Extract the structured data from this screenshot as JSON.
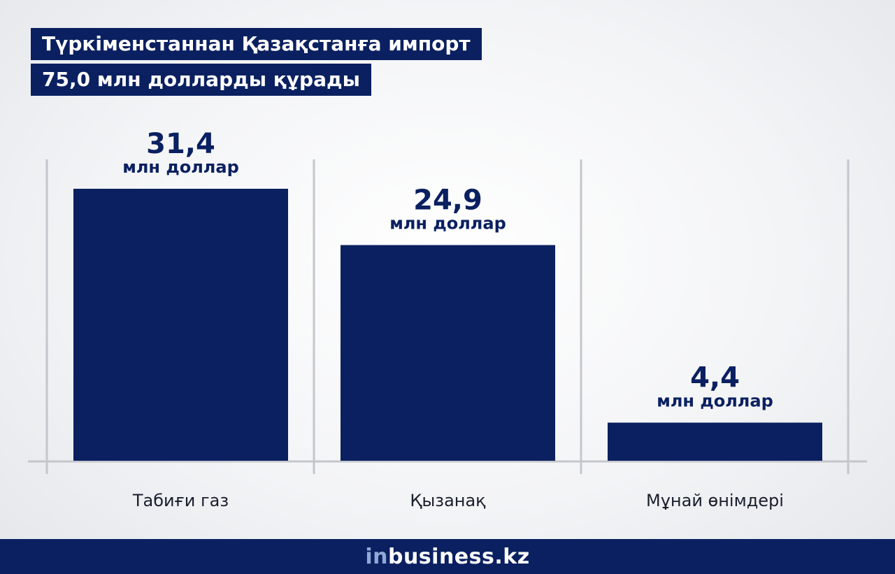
{
  "title": {
    "line1": "Түркіменстаннан Қазақстанға импорт",
    "line2": "75,0 млн долларды құрады"
  },
  "chart_data": {
    "type": "bar",
    "categories": [
      "Табиғи газ",
      "Қызанақ",
      "Мұнай өнімдері"
    ],
    "values": [
      31.4,
      24.9,
      4.4
    ],
    "value_labels": [
      "31,4",
      "24,9",
      "4,4"
    ],
    "unit_label": "млн доллар",
    "ylim": [
      0,
      31.4
    ],
    "grid": true,
    "legend": "none"
  },
  "colors": {
    "bar": "#0a2060",
    "text": "#0a2060",
    "axis": "#c4c6cb"
  },
  "footer": {
    "brand_prefix": "in",
    "brand_suffix": "business.kz"
  }
}
